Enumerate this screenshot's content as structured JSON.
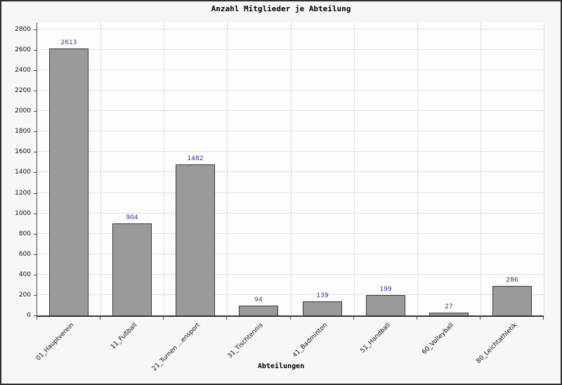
{
  "window": {
    "background": "#f7f7f7",
    "frame_border": "#2e2e2e"
  },
  "chart_data": {
    "type": "bar",
    "title": "Anzahl Mitglieder je Abteilung",
    "xlabel": "Abteilungen",
    "ylabel": "",
    "categories": [
      "01_Hauptverein",
      "11_Fußball",
      "21_Turnen ...ensport",
      "31_Tischtennis",
      "41_Badminton",
      "51_Handball",
      "60_Volleyball",
      "80_Leichtathletik"
    ],
    "values": [
      2613,
      904,
      1482,
      94,
      139,
      199,
      27,
      286
    ],
    "value_labels": [
      "2613",
      "904",
      "1482",
      "94",
      "139",
      "199",
      "27",
      "286"
    ],
    "ylim": [
      0,
      2800
    ],
    "ytick_step": 200,
    "grid": true,
    "legend": "none",
    "colors": {
      "bar_fill": "#9a9a9a",
      "bar_border": "#3a3a3a",
      "value_label": "#3333aa",
      "gridline": "#e2e2e2",
      "axis": "#4a4a4a",
      "tick_text": "#111111",
      "plot_bg": "#fdfdfd"
    }
  }
}
